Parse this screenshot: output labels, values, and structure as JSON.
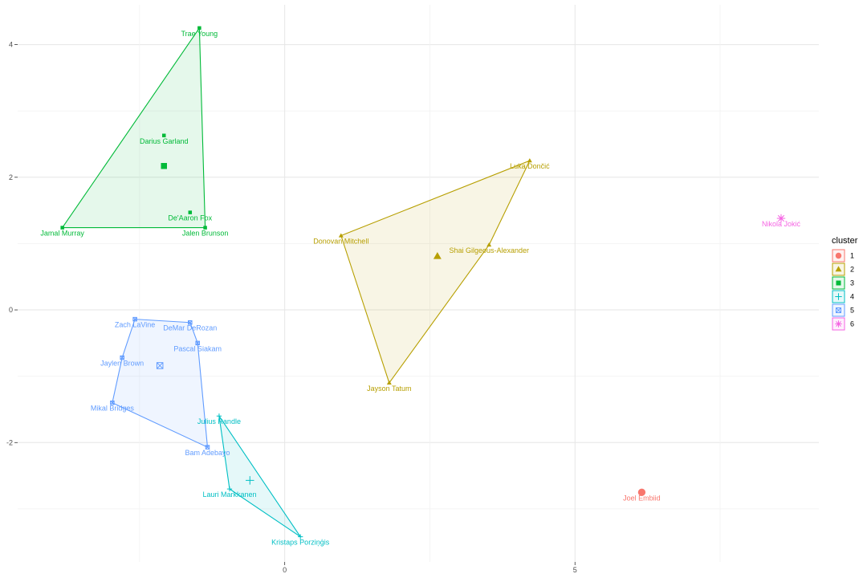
{
  "chart_data": {
    "type": "scatter",
    "title": "",
    "xlabel": "",
    "ylabel": "",
    "xlim": [
      -4.6,
      9.2
    ],
    "ylim": [
      -3.8,
      4.6
    ],
    "x_ticks": [
      0,
      5
    ],
    "y_ticks": [
      -2,
      0,
      2,
      4
    ],
    "grid": true,
    "legend": {
      "title": "cluster",
      "placement": "right",
      "entries": [
        "1",
        "2",
        "3",
        "4",
        "5",
        "6"
      ]
    },
    "clusters": [
      {
        "name": "1",
        "color": "#F8766D",
        "shape": "circle",
        "points": [
          {
            "label": "Joel Embiid",
            "x": 6.15,
            "y": -2.75
          }
        ],
        "hull": [],
        "centroid": {
          "x": 6.15,
          "y": -2.75
        }
      },
      {
        "name": "2",
        "color": "#B79F00",
        "shape": "triangle",
        "points": [
          {
            "label": "Luka Dončić",
            "x": 4.22,
            "y": 2.25
          },
          {
            "label": "Donovan Mitchell",
            "x": 0.97,
            "y": 1.12
          },
          {
            "label": "Shai Gilgeous-Alexander",
            "x": 3.52,
            "y": 0.98
          },
          {
            "label": "Jayson Tatum",
            "x": 1.8,
            "y": -1.1
          }
        ],
        "hull": [
          "Luka Dončić",
          "Donovan Mitchell",
          "Jayson Tatum",
          "Shai Gilgeous-Alexander"
        ],
        "centroid": {
          "x": 2.63,
          "y": 0.81
        }
      },
      {
        "name": "3",
        "color": "#00BA38",
        "shape": "square",
        "points": [
          {
            "label": "Trae Young",
            "x": -1.47,
            "y": 4.25
          },
          {
            "label": "Darius Garland",
            "x": -2.08,
            "y": 2.63
          },
          {
            "label": "De'Aaron Fox",
            "x": -1.63,
            "y": 1.47
          },
          {
            "label": "Jamal Murray",
            "x": -3.83,
            "y": 1.24
          },
          {
            "label": "Jalen Brunson",
            "x": -1.37,
            "y": 1.24
          }
        ],
        "hull": [
          "Trae Young",
          "Jalen Brunson",
          "Jamal Murray"
        ],
        "centroid": {
          "x": -2.08,
          "y": 2.17
        }
      },
      {
        "name": "4",
        "color": "#00BFC4",
        "shape": "plus",
        "points": [
          {
            "label": "Julius Randle",
            "x": -1.13,
            "y": -1.6
          },
          {
            "label": "Lauri Markkanen",
            "x": -0.95,
            "y": -2.7
          },
          {
            "label": "Kristaps Porziņģis",
            "x": 0.27,
            "y": -3.42
          }
        ],
        "hull": [
          "Julius Randle",
          "Kristaps Porziņģis",
          "Lauri Markkanen"
        ],
        "centroid": {
          "x": -0.6,
          "y": -2.57
        }
      },
      {
        "name": "5",
        "color": "#619CFF",
        "shape": "square-cross",
        "points": [
          {
            "label": "Zach LaVine",
            "x": -2.58,
            "y": -0.14
          },
          {
            "label": "DeMar DeRozan",
            "x": -1.63,
            "y": -0.19
          },
          {
            "label": "Pascal Siakam",
            "x": -1.5,
            "y": -0.5
          },
          {
            "label": "Jaylen Brown",
            "x": -2.8,
            "y": -0.72
          },
          {
            "label": "Mikal Bridges",
            "x": -2.97,
            "y": -1.4
          },
          {
            "label": "Bam Adebayo",
            "x": -1.33,
            "y": -2.07
          }
        ],
        "hull": [
          "Zach LaVine",
          "DeMar DeRozan",
          "Pascal Siakam",
          "Bam Adebayo",
          "Mikal Bridges",
          "Jaylen Brown"
        ],
        "centroid": {
          "x": -2.15,
          "y": -0.84
        }
      },
      {
        "name": "6",
        "color": "#F564E3",
        "shape": "asterisk",
        "points": [
          {
            "label": "Nikola Jokić",
            "x": 8.55,
            "y": 1.38
          }
        ],
        "hull": [],
        "centroid": {
          "x": 8.55,
          "y": 1.38
        }
      }
    ]
  }
}
